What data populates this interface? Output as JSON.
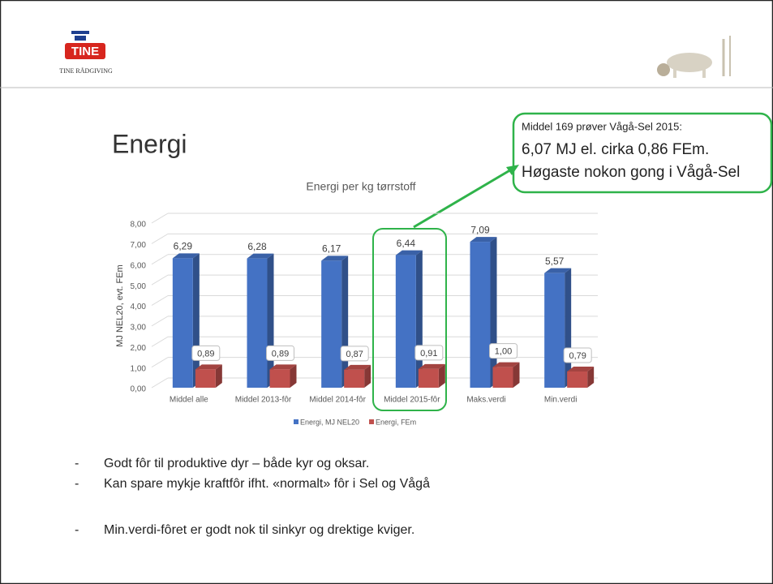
{
  "header": {
    "logo": "TINE",
    "logo_subtitle": "TINE RÅDGIVING"
  },
  "slide_title": "Energi",
  "callout": [
    "Middel 169 prøver Vågå-Sel 2015:",
    "6,07 MJ el.  cirka 0,86 FEm.",
    "Høgaste nokon gong i Vågå-Sel"
  ],
  "bullets": [
    "Godt fôr til produktive dyr – både kyr og oksar.",
    "Kan spare mykje kraftfôr ifht. «normalt» fôr i Sel og Vågå",
    "Min.verdi-fôret er godt nok til sinkyr og drektige kviger."
  ],
  "chart_data": {
    "type": "bar",
    "title": "Energi  per kg tørrstoff",
    "y_label": "MJ NEL20, evt. FEm",
    "categories": [
      "Middel alle",
      "Middel 2013-fôr",
      "Middel 2014-fôr",
      "Middel 2015-fôr",
      "Maks.verdi",
      "Min.verdi"
    ],
    "series": [
      {
        "name": "Energi, MJ NEL20",
        "color": "#4472c4",
        "values": [
          6.29,
          6.28,
          6.17,
          6.44,
          7.09,
          5.57
        ],
        "value_labels": [
          "6,29",
          "6,28",
          "6,17",
          "6,44",
          "7,09",
          "5,57"
        ]
      },
      {
        "name": "Energi, FEm",
        "color": "#c0504d",
        "values": [
          0.89,
          0.89,
          0.87,
          0.91,
          1.0,
          0.79
        ],
        "value_labels": [
          "0,89",
          "0,89",
          "0,87",
          "0,91",
          "1,00",
          "0,79"
        ]
      }
    ],
    "ylim": [
      0,
      8
    ],
    "yticks": [
      {
        "value": 0,
        "label": "0,00"
      },
      {
        "value": 1,
        "label": "1,00"
      },
      {
        "value": 2,
        "label": "2,00"
      },
      {
        "value": 3,
        "label": "3,00"
      },
      {
        "value": 4,
        "label": "4,00"
      },
      {
        "value": 5,
        "label": "5,00"
      },
      {
        "value": 6,
        "label": "6,00"
      },
      {
        "value": 7,
        "label": "7,00"
      },
      {
        "value": 8,
        "label": "8,00"
      }
    ],
    "grid": true,
    "legend": "bottom"
  }
}
